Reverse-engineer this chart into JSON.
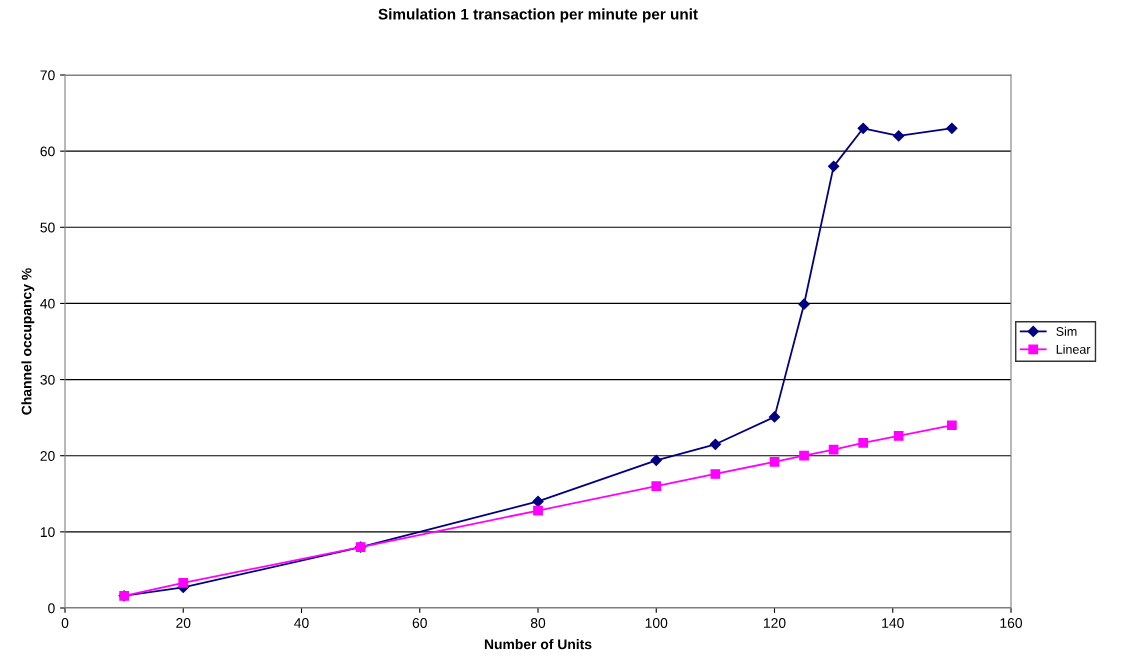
{
  "chart_data": {
    "type": "line",
    "title": "Simulation 1 transaction per minute per unit",
    "xlabel": "Number of Units",
    "ylabel": "Channel occupancy %",
    "xlim": [
      0,
      160
    ],
    "xticks": [
      0,
      20,
      40,
      60,
      80,
      100,
      120,
      140,
      160
    ],
    "ylim": [
      0,
      70
    ],
    "yticks": [
      0,
      10,
      20,
      30,
      40,
      50,
      60,
      70
    ],
    "grid": "y",
    "legend": "right",
    "line_style": "solid",
    "series": [
      {
        "name": "Sim",
        "color": "#000080",
        "marker": "diamond",
        "x": [
          10,
          20,
          50,
          80,
          100,
          110,
          120,
          125,
          130,
          135,
          141,
          150
        ],
        "values": [
          1.6,
          2.7,
          8.0,
          14.0,
          19.4,
          21.5,
          25.1,
          39.9,
          58,
          63,
          62,
          63
        ]
      },
      {
        "name": "Linear",
        "color": "#ff00ff",
        "marker": "square",
        "x": [
          10,
          20,
          50,
          80,
          100,
          110,
          120,
          125,
          130,
          135,
          141,
          150
        ],
        "values": [
          1.6,
          3.3,
          8.0,
          12.8,
          16.0,
          17.6,
          19.2,
          20.0,
          20.8,
          21.7,
          22.6,
          24.0
        ]
      }
    ]
  }
}
